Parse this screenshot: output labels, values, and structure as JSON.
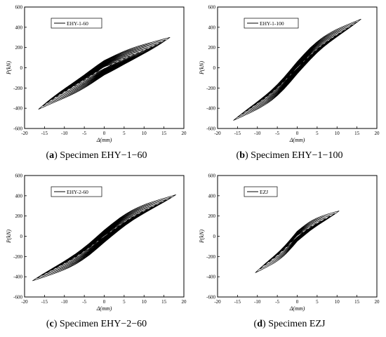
{
  "chart_data": [
    {
      "type": "line",
      "panel_letter": "a",
      "caption": "Specimen EHY−1−60",
      "legend": "EHY-1-60",
      "legend_placement": "top-left",
      "xlabel": "Δ(mm)",
      "ylabel": "P(kN)",
      "xlim": [
        -20,
        20
      ],
      "ylim": [
        -600,
        600
      ],
      "xticks": [
        -20,
        -15,
        -10,
        -5,
        0,
        5,
        10,
        15,
        20
      ],
      "yticks": [
        -600,
        -400,
        -200,
        0,
        200,
        400,
        600
      ],
      "grid": false,
      "hysteresis": {
        "amp_start": 2,
        "amp_end": 16.5,
        "cycles": 14,
        "peak_pos": 300,
        "peak_neg": -410,
        "pinch": 0.5,
        "shape": 0.12,
        "width": 130
      }
    },
    {
      "type": "line",
      "panel_letter": "b",
      "caption": "Specimen EHY−1−100",
      "legend": "EHY-1-100",
      "legend_placement": "top-left",
      "xlabel": "Δ(mm)",
      "ylabel": "P(kN)",
      "xlim": [
        -20,
        20
      ],
      "ylim": [
        -600,
        600
      ],
      "xticks": [
        -20,
        -15,
        -10,
        -5,
        0,
        5,
        10,
        15,
        20
      ],
      "yticks": [
        -600,
        -400,
        -200,
        0,
        200,
        400,
        600
      ],
      "grid": false,
      "hysteresis": {
        "amp_start": 1.5,
        "amp_end": 16,
        "cycles": 15,
        "peak_pos": 480,
        "peak_neg": -520,
        "pinch": 0.85,
        "shape": 0.35,
        "width": 110
      }
    },
    {
      "type": "line",
      "panel_letter": "c",
      "caption": "Specimen EHY−2−60",
      "legend": "EHY-2-60",
      "legend_placement": "top-left",
      "xlabel": "Δ(mm)",
      "ylabel": "P(kN)",
      "xlim": [
        -20,
        20
      ],
      "ylim": [
        -600,
        600
      ],
      "xticks": [
        -20,
        -15,
        -10,
        -5,
        0,
        5,
        10,
        15,
        20
      ],
      "yticks": [
        -600,
        -400,
        -200,
        0,
        200,
        400,
        600
      ],
      "grid": false,
      "hysteresis": {
        "amp_start": 1.5,
        "amp_end": 18,
        "cycles": 15,
        "peak_pos": 410,
        "peak_neg": -440,
        "pinch": 0.8,
        "shape": 0.3,
        "width": 110
      }
    },
    {
      "type": "line",
      "panel_letter": "d",
      "caption": "Specimen EZJ",
      "legend": "EZJ",
      "legend_placement": "top-left",
      "xlabel": "Δ(mm)",
      "ylabel": "P(kN)",
      "xlim": [
        -20,
        20
      ],
      "ylim": [
        -600,
        600
      ],
      "xticks": [
        -20,
        -15,
        -10,
        -5,
        0,
        5,
        10,
        15,
        20
      ],
      "yticks": [
        -600,
        -400,
        -200,
        0,
        200,
        400,
        600
      ],
      "grid": false,
      "hysteresis": {
        "amp_start": 1.5,
        "amp_end": 10.5,
        "cycles": 9,
        "peak_pos": 250,
        "peak_neg": -360,
        "pinch": 0.7,
        "shape": 0.2,
        "width": 90
      }
    }
  ]
}
